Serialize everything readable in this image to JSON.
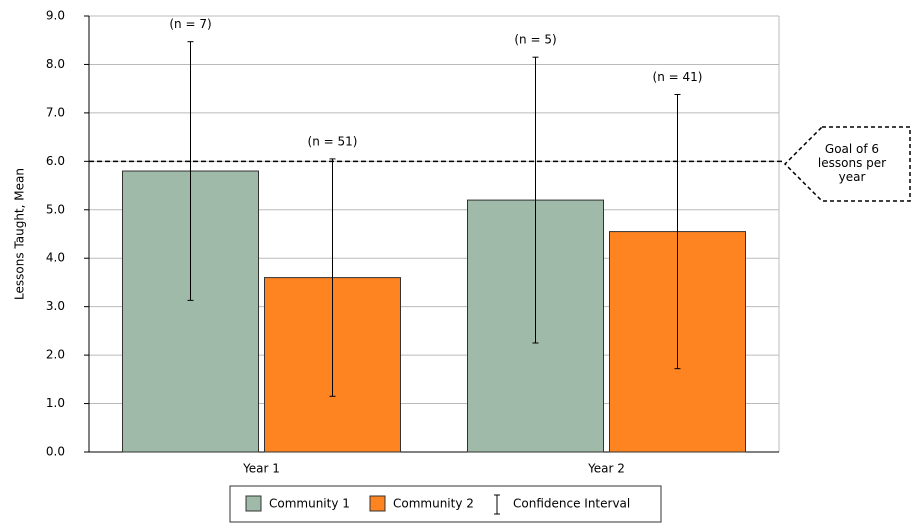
{
  "chart_data": {
    "type": "bar",
    "y_label": "Lessons Taught, Mean",
    "categories": [
      "Year 1",
      "Year 2"
    ],
    "series": [
      {
        "name": "Community 1",
        "color": "#9fbaa9",
        "values": [
          5.8,
          5.2
        ],
        "errors": [
          2.67,
          2.95
        ],
        "n_labels": [
          "(n = 7)",
          "(n = 5)"
        ]
      },
      {
        "name": "Community 2",
        "color": "#fd8421",
        "values": [
          3.6,
          4.55
        ],
        "errors": [
          2.45,
          2.83
        ],
        "n_labels": [
          "(n = 51)",
          "(n = 41)"
        ]
      }
    ],
    "error_bar_label": "Confidence Interval",
    "reference_line": {
      "value": 6,
      "label": "Goal of 6 lessons per year"
    },
    "ylim": [
      0,
      9
    ],
    "yticks": [
      {
        "value": 0,
        "label": "0.0"
      },
      {
        "value": 1,
        "label": "1.0"
      },
      {
        "value": 2,
        "label": "2.0"
      },
      {
        "value": 3,
        "label": "3.0"
      },
      {
        "value": 4,
        "label": "4.0"
      },
      {
        "value": 5,
        "label": "5.0"
      },
      {
        "value": 6,
        "label": "6.0"
      },
      {
        "value": 7,
        "label": "7.0"
      },
      {
        "value": 8,
        "label": "8.0"
      },
      {
        "value": 9,
        "label": "9.0"
      }
    ],
    "grid": true
  }
}
